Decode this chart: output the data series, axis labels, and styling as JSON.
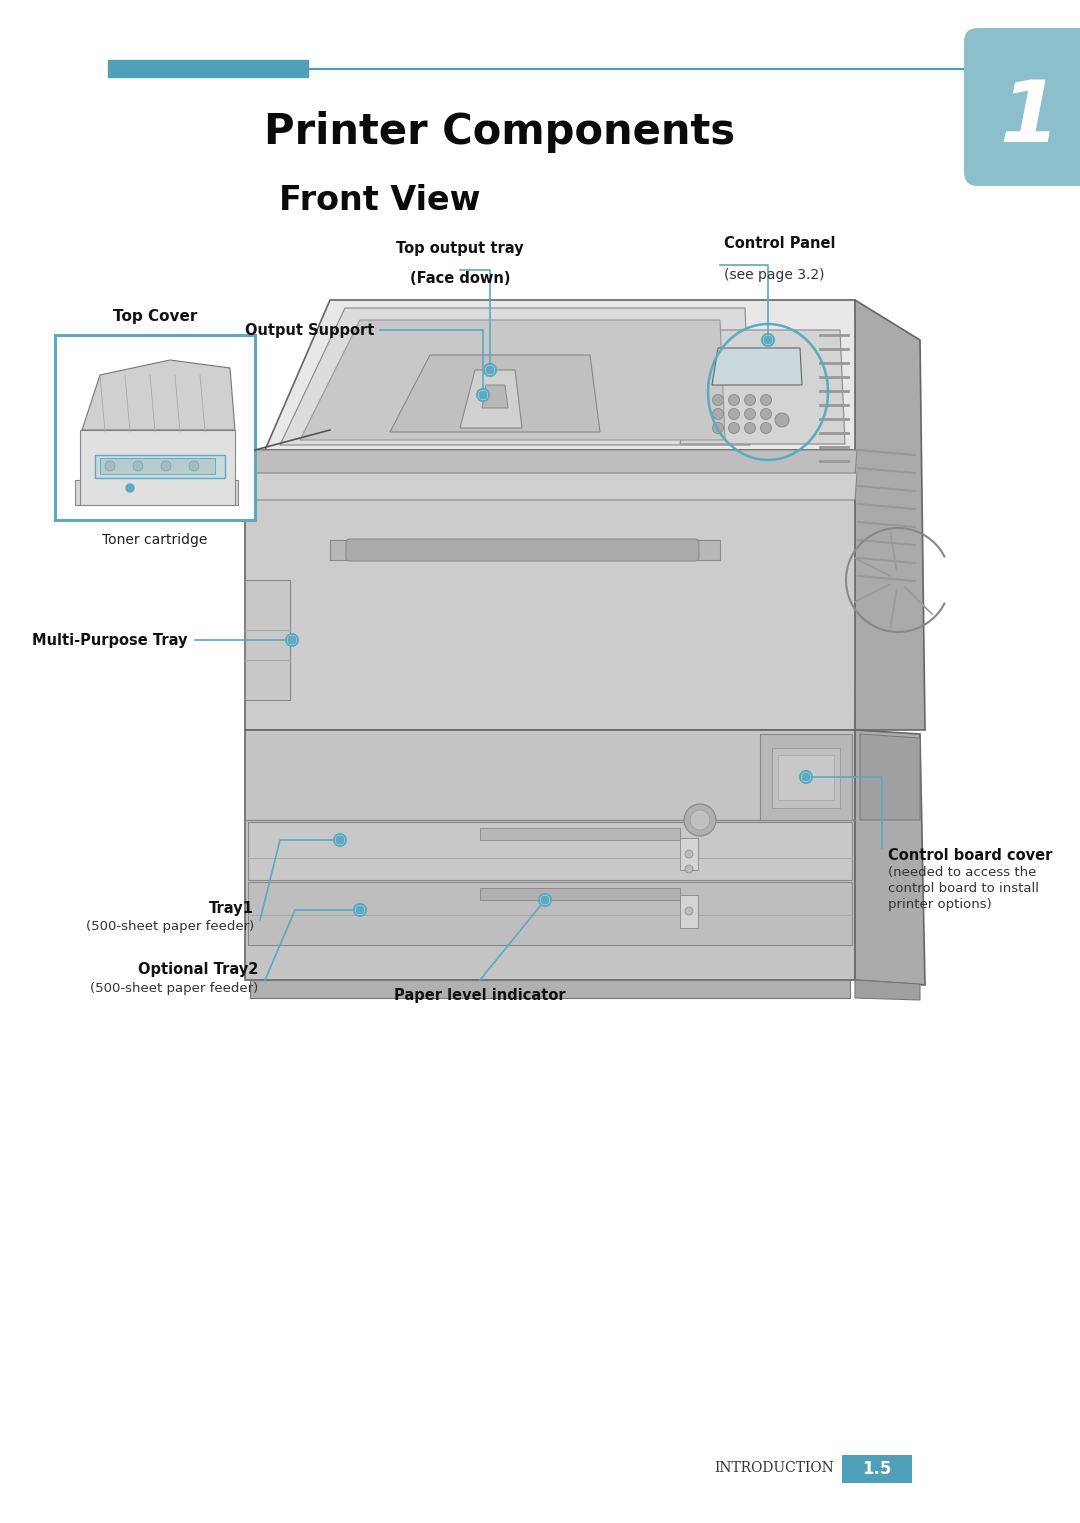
{
  "bg_color": "#ffffff",
  "teal": "#5baabf",
  "teal_header": "#4da0b8",
  "teal_tab": "#8bbfcc",
  "line_color": "#444444",
  "body_light": "#e8e8e8",
  "body_mid": "#cccccc",
  "body_dark": "#aaaaaa",
  "body_darker": "#909090",
  "body_side": "#888888",
  "title": "Printer Components",
  "subtitle": "Front View",
  "chapter": "1",
  "page_label": "INTRODUCTION",
  "page_num": "1.5",
  "ann_dot_color": "#5baabf",
  "ann_line_color": "#5baabf",
  "label_top_tray_1": "Top output tray",
  "label_top_tray_2": "(Face down)",
  "label_output_support": "Output Support",
  "label_control_panel_1": "Control Panel",
  "label_control_panel_2": "(see page 3.2)",
  "label_top_cover": "Top Cover",
  "label_toner": "Toner cartridge",
  "label_mp_tray": "Multi-Purpose Tray",
  "label_tray1": "Tray1",
  "label_tray1_sub": "(500-sheet paper feeder)",
  "label_opt_tray2": "Optional Tray2",
  "label_opt_tray2_sub": "(500-sheet paper feeder)",
  "label_paper_level": "Paper level indicator",
  "label_ctrl_board_1": "Control board cover",
  "label_ctrl_board_2": "(needed to access the",
  "label_ctrl_board_3": "control board to install",
  "label_ctrl_board_4": "printer options)"
}
